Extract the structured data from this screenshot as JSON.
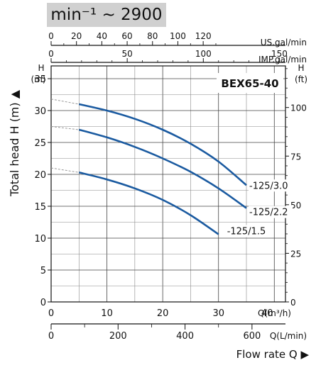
{
  "speed": {
    "label": "min⁻¹ ~ 2900"
  },
  "chart_data": {
    "type": "line",
    "title": "BEX65-40",
    "ylabel": "Total head H (m) ▲",
    "xlabel": "Flow rate  Q ▶",
    "grid": true,
    "x_axis": {
      "unit": "Q(m³/h)",
      "lim": [
        0,
        42
      ],
      "major_ticks": [
        0,
        10,
        20,
        30,
        40
      ]
    },
    "y_axis": {
      "unit": "(m)",
      "name": "H",
      "lim": [
        0,
        37
      ],
      "major_ticks": [
        0,
        5,
        10,
        15,
        20,
        25,
        30,
        35
      ]
    },
    "y_axis_right": {
      "unit": "(ft)",
      "name": "H",
      "ticks": [
        0,
        25,
        50,
        75,
        100
      ]
    },
    "x_axis_top_us": {
      "unit": "US.gal/min",
      "ticks": [
        0,
        20,
        40,
        60,
        80,
        100,
        120
      ]
    },
    "x_axis_top_imp": {
      "unit": "IMP.gal/min",
      "ticks": [
        0,
        50,
        100,
        150
      ]
    },
    "x_axis_bottom_lmin": {
      "unit": "Q(L/min)",
      "ticks": [
        0,
        200,
        400,
        600
      ]
    },
    "series": [
      {
        "name": "-125/3.0",
        "color": "#1a5aa0",
        "x": [
          5,
          10,
          15,
          20,
          25,
          30,
          35
        ],
        "y": [
          31.0,
          30.0,
          28.7,
          27.0,
          24.8,
          22.0,
          18.3
        ],
        "extrapolated": {
          "x": [
            0,
            5
          ],
          "y": [
            31.8,
            31.0
          ]
        }
      },
      {
        "name": "-125/2.2",
        "color": "#1a5aa0",
        "x": [
          5,
          10,
          15,
          20,
          25,
          30,
          35
        ],
        "y": [
          27.0,
          25.8,
          24.3,
          22.5,
          20.4,
          17.8,
          14.7
        ],
        "extrapolated": {
          "x": [
            0,
            5
          ],
          "y": [
            27.5,
            27.0
          ]
        }
      },
      {
        "name": "-125/1.5",
        "color": "#1a5aa0",
        "x": [
          5,
          10,
          15,
          20,
          25,
          30
        ],
        "y": [
          20.3,
          19.2,
          17.8,
          16.0,
          13.6,
          10.6
        ],
        "extrapolated": {
          "x": [
            0,
            5
          ],
          "y": [
            21.0,
            20.3
          ]
        }
      }
    ]
  }
}
